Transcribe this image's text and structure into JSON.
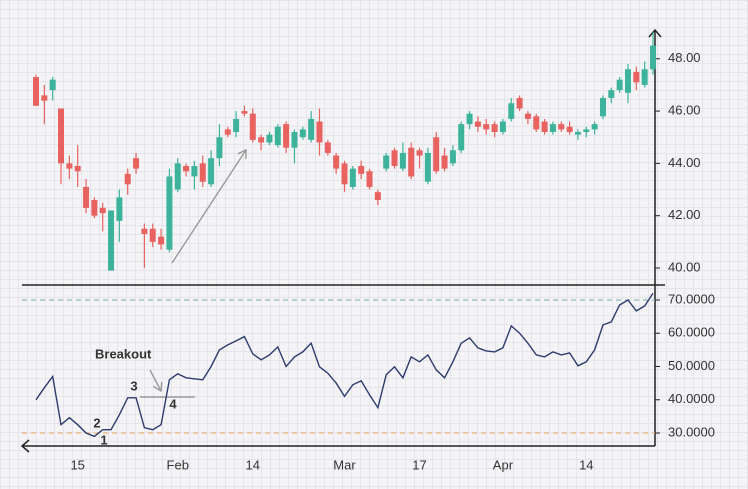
{
  "chart_data": [
    {
      "type": "candlestick",
      "open": [
        47.3,
        46.6,
        46.8,
        46.1,
        44.0,
        43.9,
        43.1,
        42.6,
        42.3,
        39.9,
        41.8,
        43.6,
        44.2,
        41.5,
        41.5,
        41.2,
        40.7,
        43.0,
        43.9,
        43.5,
        44.0,
        43.2,
        44.2,
        45.3,
        45.2,
        46.0,
        45.9,
        45.0,
        44.8,
        44.7,
        45.5,
        44.6,
        45.0,
        44.9,
        45.6,
        44.8,
        44.3,
        44.0,
        43.1,
        43.9,
        43.7,
        42.9,
        43.8,
        44.5,
        43.8,
        44.6,
        44.5,
        43.3,
        45.0,
        44.3,
        44.0,
        44.5,
        45.5,
        45.6,
        45.5,
        45.5,
        45.2,
        45.7,
        46.5,
        45.9,
        45.8,
        45.6,
        45.2,
        45.5,
        45.4,
        45.1,
        45.2,
        45.3,
        45.8,
        46.5,
        46.8,
        46.7,
        47.5,
        47.0,
        47.6
      ],
      "high": [
        47.4,
        47.0,
        47.3,
        46.1,
        44.3,
        44.7,
        43.4,
        42.7,
        42.5,
        42.2,
        43.0,
        43.8,
        44.4,
        41.7,
        41.7,
        41.5,
        43.8,
        44.2,
        44.0,
        44.1,
        44.3,
        44.5,
        45.5,
        45.4,
        46.0,
        46.2,
        46.1,
        45.1,
        45.2,
        45.5,
        45.6,
        45.3,
        45.4,
        46.0,
        46.1,
        44.9,
        44.4,
        44.1,
        43.9,
        44.1,
        43.8,
        43.0,
        44.4,
        44.6,
        44.8,
        44.8,
        44.6,
        44.6,
        45.2,
        44.6,
        44.7,
        45.6,
        46.0,
        45.8,
        45.7,
        45.6,
        45.7,
        46.5,
        46.6,
        46.0,
        45.9,
        45.7,
        45.6,
        45.6,
        45.6,
        45.3,
        45.4,
        45.6,
        46.6,
        46.9,
        47.3,
        47.8,
        47.7,
        47.9,
        49.0
      ],
      "low": [
        46.2,
        45.5,
        46.4,
        43.2,
        43.4,
        43.1,
        42.1,
        41.9,
        41.4,
        39.9,
        41.0,
        42.8,
        43.6,
        40.0,
        40.8,
        40.7,
        40.6,
        42.9,
        43.5,
        43.0,
        43.1,
        43.1,
        43.9,
        45.0,
        45.0,
        45.8,
        44.8,
        44.5,
        44.7,
        44.6,
        44.4,
        44.0,
        44.9,
        44.8,
        44.3,
        44.3,
        43.6,
        42.9,
        43.0,
        43.4,
        43.0,
        42.4,
        43.7,
        43.8,
        43.7,
        43.4,
        43.8,
        43.2,
        43.6,
        43.7,
        43.9,
        44.4,
        45.3,
        45.2,
        45.1,
        45.0,
        45.1,
        45.6,
        46.0,
        45.5,
        45.2,
        45.1,
        45.1,
        45.2,
        45.1,
        44.9,
        45.0,
        45.1,
        45.7,
        46.3,
        46.7,
        46.3,
        46.8,
        46.9,
        47.4
      ],
      "close": [
        46.2,
        46.4,
        47.2,
        44.0,
        43.8,
        43.7,
        42.3,
        42.0,
        42.1,
        42.2,
        42.7,
        43.2,
        43.8,
        41.3,
        41.0,
        40.9,
        43.5,
        44.0,
        43.7,
        43.9,
        43.3,
        44.2,
        45.0,
        45.1,
        45.7,
        45.9,
        44.9,
        44.8,
        45.1,
        45.4,
        44.6,
        45.2,
        45.3,
        45.7,
        44.8,
        44.4,
        43.8,
        43.2,
        43.8,
        43.6,
        43.1,
        42.6,
        44.3,
        43.9,
        44.4,
        43.5,
        44.3,
        44.4,
        43.7,
        43.8,
        44.5,
        45.5,
        45.9,
        45.4,
        45.3,
        45.2,
        45.6,
        46.3,
        46.1,
        45.7,
        45.3,
        45.2,
        45.5,
        45.3,
        45.2,
        45.2,
        45.3,
        45.5,
        46.5,
        46.8,
        47.2,
        47.6,
        47.1,
        47.6,
        48.5
      ],
      "up_color": "#3db39c",
      "down_color": "#e8625f",
      "ylim": [
        39.35,
        49.1
      ],
      "yticks": [
        {
          "value": 40,
          "label": "40.00"
        },
        {
          "value": 42,
          "label": "42.00"
        },
        {
          "value": 44,
          "label": "44.00"
        },
        {
          "value": 46,
          "label": "46.00"
        },
        {
          "value": 48,
          "label": "48.00"
        }
      ]
    },
    {
      "type": "line",
      "categories": [
        null,
        null,
        null,
        null,
        null,
        "15",
        null,
        null,
        null,
        null,
        null,
        null,
        null,
        null,
        null,
        null,
        null,
        "Feb",
        null,
        null,
        null,
        null,
        null,
        null,
        null,
        null,
        "14",
        null,
        null,
        null,
        null,
        null,
        null,
        null,
        null,
        null,
        null,
        "Mar",
        null,
        null,
        null,
        null,
        null,
        null,
        null,
        null,
        "17",
        null,
        null,
        null,
        null,
        null,
        null,
        null,
        null,
        null,
        "Apr",
        null,
        null,
        null,
        null,
        null,
        null,
        null,
        null,
        null,
        "14",
        null,
        null,
        null,
        null,
        null,
        null,
        null,
        null
      ],
      "values": [
        40,
        43.6,
        47,
        32.5,
        34.6,
        32.5,
        30,
        29,
        31,
        31,
        35.5,
        40.6,
        40.6,
        31.6,
        31,
        32.5,
        46,
        47.8,
        46.6,
        46.3,
        46,
        50,
        55,
        56.5,
        57.7,
        59,
        53.8,
        52,
        53.5,
        55.9,
        50,
        52.9,
        54.4,
        57,
        49.9,
        48,
        45,
        41,
        44.5,
        45.7,
        41.5,
        37.6,
        47.5,
        49.9,
        46.6,
        52.9,
        51.4,
        53.5,
        49,
        46.6,
        51.4,
        57,
        58.6,
        55.6,
        54.7,
        54.4,
        55.6,
        62.2,
        60,
        57,
        53.5,
        52.9,
        54.4,
        53.5,
        54.1,
        50.2,
        51.4,
        55,
        62.5,
        63.4,
        68.5,
        70,
        66.7,
        68.2,
        72
      ],
      "color": "#2d3b6e",
      "ylim": [
        26.1,
        74.5
      ],
      "yticks": [
        {
          "value": 30,
          "label": "30.0000"
        },
        {
          "value": 40,
          "label": "40.0000"
        },
        {
          "value": 50,
          "label": "50.0000"
        },
        {
          "value": 60,
          "label": "60.0000"
        },
        {
          "value": 70,
          "label": "70.0000"
        }
      ],
      "reference_lines": [
        {
          "value": 70,
          "color": "#8db7bf"
        },
        {
          "value": 30,
          "color": "#efb27a"
        }
      ],
      "annotations": [
        "Breakout",
        "1",
        "2",
        "3",
        "4"
      ]
    }
  ]
}
